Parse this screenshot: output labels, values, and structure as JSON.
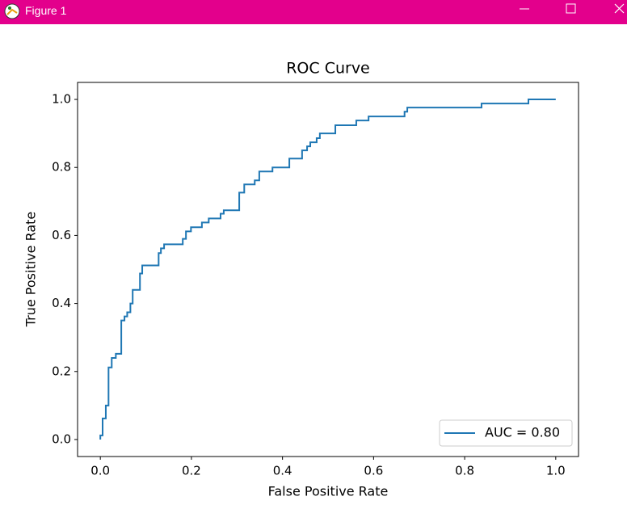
{
  "window": {
    "title": "Figure 1"
  },
  "chart_data": {
    "type": "line",
    "title": "ROC Curve",
    "x_label": "False Positive Rate",
    "y_label": "True Positive Rate",
    "xlim": [
      -0.05,
      1.05
    ],
    "ylim": [
      -0.05,
      1.05
    ],
    "xticks": [
      {
        "value": 0,
        "label": "0.0"
      },
      0.2,
      0.4,
      0.6,
      0.8,
      {
        "value": 1,
        "label": "1.0"
      }
    ],
    "yticks": [
      {
        "value": 0,
        "label": "0.0"
      },
      0.2,
      0.4,
      0.6,
      0.8,
      {
        "value": 1,
        "label": "1.0"
      }
    ],
    "grid": false,
    "legend": "lower right",
    "series": [
      {
        "name": "AUC = 0.80",
        "color": "#1f77b4",
        "x": [
          0,
          0,
          0.005,
          0.005,
          0.012,
          0.012,
          0.018,
          0.018,
          0.025,
          0.025,
          0.034,
          0.034,
          0.046,
          0.046,
          0.053,
          0.053,
          0.059,
          0.059,
          0.066,
          0.066,
          0.071,
          0.071,
          0.087,
          0.087,
          0.092,
          0.092,
          0.128,
          0.128,
          0.133,
          0.133,
          0.14,
          0.14,
          0.181,
          0.181,
          0.188,
          0.188,
          0.199,
          0.199,
          0.223,
          0.223,
          0.238,
          0.238,
          0.264,
          0.264,
          0.271,
          0.271,
          0.305,
          0.305,
          0.316,
          0.316,
          0.339,
          0.339,
          0.349,
          0.349,
          0.378,
          0.378,
          0.415,
          0.415,
          0.443,
          0.443,
          0.454,
          0.454,
          0.461,
          0.461,
          0.475,
          0.475,
          0.482,
          0.482,
          0.516,
          0.516,
          0.562,
          0.562,
          0.589,
          0.589,
          0.668,
          0.668,
          0.674,
          0.674,
          0.837,
          0.837,
          0.94,
          0.94,
          1
        ],
        "values": [
          0,
          0.012,
          0.012,
          0.062,
          0.062,
          0.1,
          0.1,
          0.212,
          0.212,
          0.24,
          0.24,
          0.252,
          0.252,
          0.35,
          0.35,
          0.362,
          0.362,
          0.374,
          0.374,
          0.4,
          0.4,
          0.44,
          0.44,
          0.488,
          0.488,
          0.512,
          0.512,
          0.548,
          0.548,
          0.562,
          0.562,
          0.574,
          0.574,
          0.59,
          0.59,
          0.612,
          0.612,
          0.624,
          0.624,
          0.638,
          0.638,
          0.65,
          0.65,
          0.664,
          0.664,
          0.674,
          0.674,
          0.726,
          0.726,
          0.75,
          0.75,
          0.762,
          0.762,
          0.788,
          0.788,
          0.8,
          0.8,
          0.826,
          0.826,
          0.85,
          0.85,
          0.862,
          0.862,
          0.874,
          0.874,
          0.886,
          0.886,
          0.9,
          0.9,
          0.924,
          0.924,
          0.938,
          0.938,
          0.95,
          0.95,
          0.964,
          0.964,
          0.976,
          0.976,
          0.988,
          0.988,
          1,
          1
        ]
      }
    ]
  }
}
